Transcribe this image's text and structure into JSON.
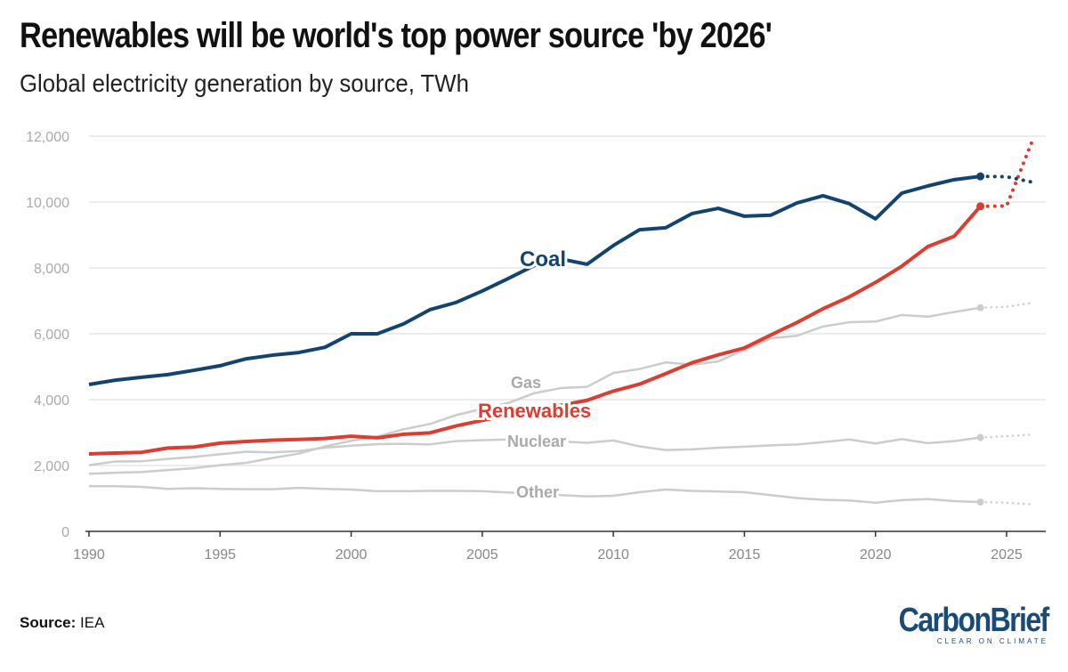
{
  "title": "Renewables will be world's top power source 'by 2026'",
  "subtitle": "Global electricity generation by source, TWh",
  "source_label": "Source:",
  "source_value": "IEA",
  "logo": {
    "name": "CarbonBrief",
    "tagline": "CLEAR ON CLIMATE"
  },
  "chart_data": {
    "type": "line",
    "title": "Renewables will be world's top power source 'by 2026'",
    "subtitle": "Global electricity generation by source, TWh",
    "xlim": [
      1990,
      2026
    ],
    "ylim": [
      0,
      12000
    ],
    "x_ticks": [
      1990,
      1995,
      2000,
      2005,
      2010,
      2015,
      2020,
      2025
    ],
    "y_ticks": [
      0,
      2000,
      4000,
      6000,
      8000,
      10000,
      12000
    ],
    "y_tick_labels": [
      "0",
      "2,000",
      "4,000",
      "6,000",
      "8,000",
      "10,000",
      "12,000"
    ],
    "grid": "horizontal",
    "last_actual_year": 2024,
    "forecast_style": "dotted",
    "x": [
      1990,
      1991,
      1992,
      1993,
      1994,
      1995,
      1996,
      1997,
      1998,
      1999,
      2000,
      2001,
      2002,
      2003,
      2004,
      2005,
      2006,
      2007,
      2008,
      2009,
      2010,
      2011,
      2012,
      2013,
      2014,
      2015,
      2016,
      2017,
      2018,
      2019,
      2020,
      2021,
      2022,
      2023,
      2024,
      2025,
      2026
    ],
    "series": [
      {
        "name": "Other",
        "color": "#cccccc",
        "label_color": "#aaaaaa",
        "values": [
          1370,
          1370,
          1350,
          1290,
          1310,
          1290,
          1280,
          1280,
          1320,
          1290,
          1270,
          1220,
          1220,
          1230,
          1230,
          1220,
          1180,
          1150,
          1100,
          1060,
          1080,
          1190,
          1270,
          1230,
          1210,
          1190,
          1100,
          1010,
          960,
          940,
          870,
          950,
          980,
          920,
          890,
          870,
          820
        ]
      },
      {
        "name": "Nuclear",
        "color": "#cccccc",
        "label_color": "#aaaaaa",
        "values": [
          2010,
          2120,
          2130,
          2200,
          2260,
          2340,
          2420,
          2400,
          2440,
          2540,
          2600,
          2650,
          2660,
          2640,
          2740,
          2770,
          2790,
          2720,
          2730,
          2690,
          2760,
          2580,
          2470,
          2490,
          2540,
          2570,
          2610,
          2640,
          2710,
          2790,
          2670,
          2800,
          2680,
          2740,
          2850,
          2890,
          2940
        ]
      },
      {
        "name": "Gas",
        "color": "#cccccc",
        "label_color": "#aaaaaa",
        "values": [
          1750,
          1780,
          1800,
          1860,
          1920,
          2010,
          2080,
          2230,
          2360,
          2580,
          2750,
          2880,
          3100,
          3260,
          3530,
          3720,
          3900,
          4200,
          4350,
          4390,
          4810,
          4930,
          5130,
          5060,
          5160,
          5510,
          5860,
          5940,
          6220,
          6350,
          6370,
          6570,
          6520,
          6660,
          6790,
          6820,
          6940
        ]
      },
      {
        "name": "Renewables",
        "color": "#dc3d32",
        "label_color": "#dc3d32",
        "values": [
          2350,
          2380,
          2400,
          2530,
          2560,
          2680,
          2730,
          2770,
          2790,
          2820,
          2890,
          2840,
          2950,
          2990,
          3200,
          3370,
          3530,
          3700,
          3830,
          3980,
          4260,
          4470,
          4790,
          5120,
          5360,
          5570,
          5960,
          6340,
          6760,
          7120,
          7560,
          8050,
          8650,
          8960,
          9870,
          9880,
          11900
        ]
      },
      {
        "name": "Coal",
        "color": "#13436f",
        "label_color": "#13436f",
        "values": [
          4460,
          4590,
          4680,
          4760,
          4890,
          5030,
          5240,
          5350,
          5430,
          5590,
          6000,
          6000,
          6300,
          6730,
          6950,
          7300,
          7680,
          8080,
          8270,
          8110,
          8680,
          9160,
          9220,
          9650,
          9810,
          9570,
          9600,
          9970,
          10190,
          9950,
          9490,
          10270,
          10490,
          10680,
          10780,
          10770,
          10600
        ]
      }
    ]
  }
}
